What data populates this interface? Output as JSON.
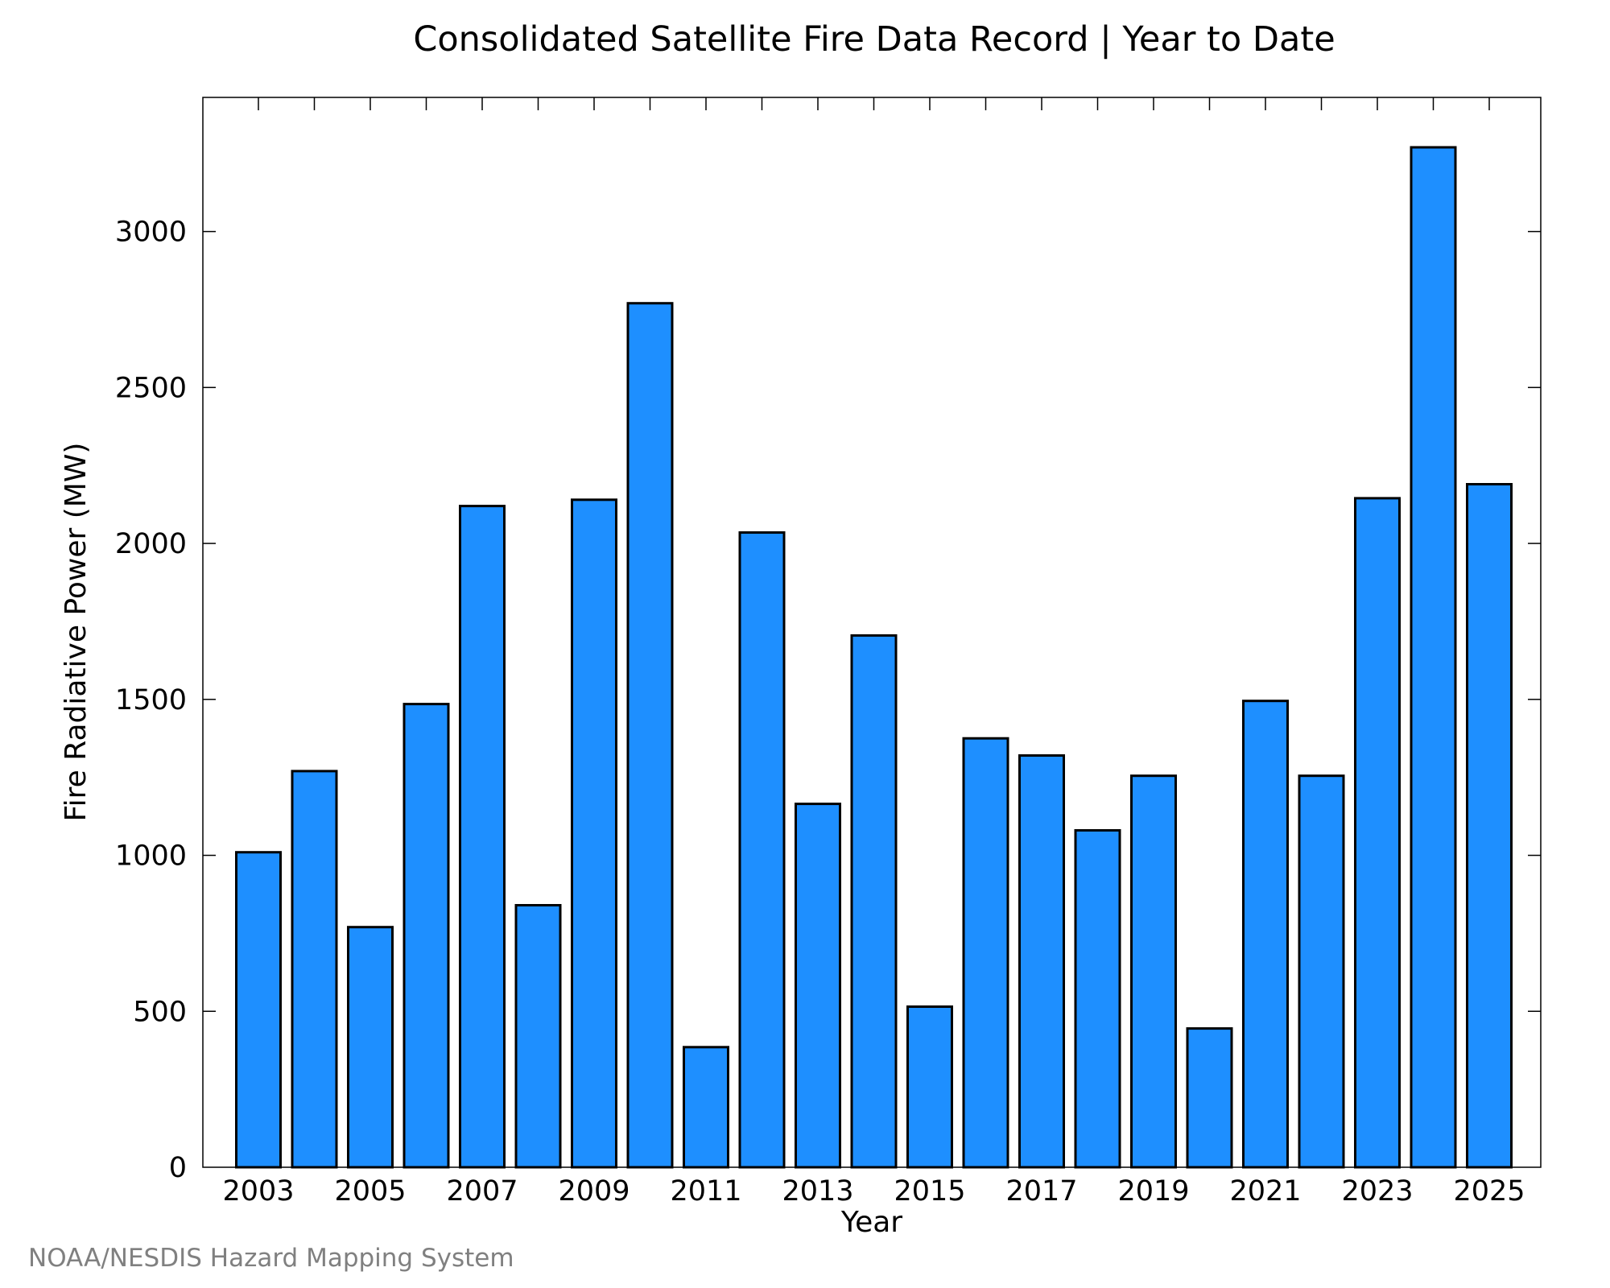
{
  "chart_data": {
    "type": "bar",
    "title": "Consolidated Satellite Fire Data Record | Year to Date",
    "xlabel": "Year",
    "ylabel": "Fire Radiative Power (MW)",
    "credit": "NOAA/NESDIS Hazard Mapping System",
    "categories": [
      "2003",
      "2004",
      "2005",
      "2006",
      "2007",
      "2008",
      "2009",
      "2010",
      "2011",
      "2012",
      "2013",
      "2014",
      "2015",
      "2016",
      "2017",
      "2018",
      "2019",
      "2020",
      "2021",
      "2022",
      "2023",
      "2024",
      "2025"
    ],
    "values": [
      1010,
      1270,
      770,
      1485,
      2120,
      840,
      2140,
      2770,
      385,
      2035,
      1165,
      1705,
      515,
      1375,
      1320,
      1080,
      1255,
      445,
      1495,
      1255,
      2145,
      3270,
      2190
    ],
    "x_tick_labels": [
      "2003",
      "2005",
      "2007",
      "2009",
      "2011",
      "2013",
      "2015",
      "2017",
      "2019",
      "2021",
      "2023",
      "2025"
    ],
    "y_ticks": [
      0,
      500,
      1000,
      1500,
      2000,
      2500,
      3000
    ],
    "ylim": [
      0,
      3430
    ],
    "grid": false,
    "bar_color": "#1e8fff",
    "edge_color": "#000000"
  }
}
